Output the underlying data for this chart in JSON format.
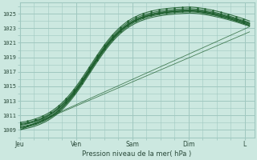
{
  "background_color": "#cce8e0",
  "plot_bg_color": "#cce8e0",
  "grid_color": "#a0c8c0",
  "line_color": "#1a5c2a",
  "title": "Pression niveau de la mer( hPa )",
  "ylabel_values": [
    1009,
    1011,
    1013,
    1015,
    1017,
    1019,
    1021,
    1023,
    1025
  ],
  "x_ticks": [
    0,
    24,
    48,
    72,
    96
  ],
  "x_tick_labels": [
    "Jeu",
    "Ven",
    "Sam",
    "Dim",
    "L"
  ],
  "xlim": [
    0,
    100
  ],
  "ylim": [
    1008.0,
    1026.5
  ],
  "figsize": [
    3.2,
    2.0
  ],
  "dpi": 100
}
